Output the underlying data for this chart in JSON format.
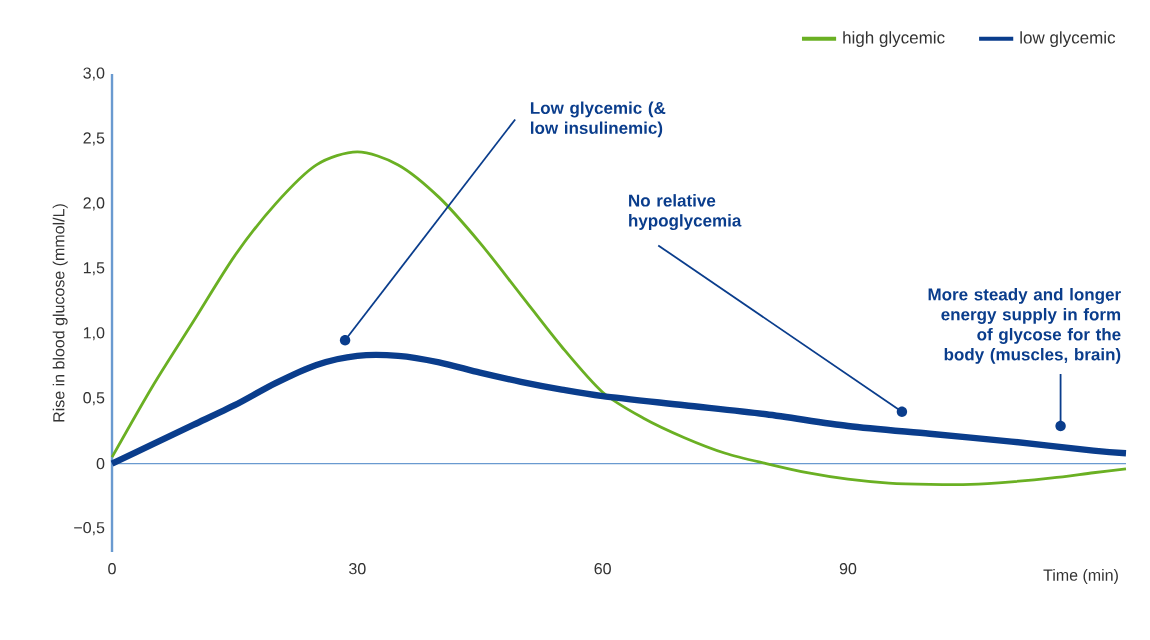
{
  "chart_data": {
    "type": "line",
    "xlabel": "Time (min)",
    "ylabel": "Rise in blood glucose (mmol/L)",
    "xlim": [
      0,
      124
    ],
    "ylim": [
      -0.68,
      3.0
    ],
    "xticks": [
      0,
      30,
      60,
      90
    ],
    "yticks": [
      {
        "value": -0.5,
        "label": "−0,5"
      },
      0,
      {
        "value": 0.5,
        "label": "0,5"
      },
      {
        "value": 1,
        "label": "1,0"
      },
      {
        "value": 1.5,
        "label": "1,5"
      },
      {
        "value": 2,
        "label": "2,0"
      },
      {
        "value": 2.5,
        "label": "2,5"
      },
      {
        "value": 3,
        "label": "3,0"
      }
    ],
    "ref_lines": [
      {
        "axis": "y",
        "value": 0,
        "color": "#6a9ad0"
      }
    ],
    "legend": "top right",
    "grid": false,
    "marker": "none",
    "line_style": "solid",
    "series": [
      {
        "name": "high glycemic",
        "color": "#6ab023",
        "x": [
          0,
          5,
          10,
          15,
          20,
          25,
          30,
          35,
          40,
          45,
          50,
          55,
          60,
          65,
          70,
          75,
          80,
          85,
          90,
          95,
          100,
          105,
          110,
          115,
          120,
          124
        ],
        "values": [
          0.05,
          0.6,
          1.1,
          1.6,
          2.0,
          2.3,
          2.4,
          2.3,
          2.05,
          1.7,
          1.3,
          0.9,
          0.55,
          0.35,
          0.2,
          0.08,
          0,
          -0.07,
          -0.12,
          -0.15,
          -0.16,
          -0.16,
          -0.14,
          -0.11,
          -0.07,
          -0.04
        ]
      },
      {
        "name": "low glycemic",
        "color": "#0a3d8c",
        "x": [
          0,
          5,
          10,
          15,
          20,
          25,
          30,
          35,
          40,
          45,
          50,
          55,
          60,
          70,
          80,
          90,
          100,
          110,
          120,
          124
        ],
        "values": [
          0,
          0.15,
          0.3,
          0.45,
          0.62,
          0.76,
          0.83,
          0.83,
          0.78,
          0.7,
          0.63,
          0.57,
          0.52,
          0.45,
          0.38,
          0.29,
          0.23,
          0.17,
          0.1,
          0.08
        ]
      }
    ],
    "annotations": [
      {
        "text": "Low glycemic (& low insulinemic)",
        "x": 28.5,
        "y": 0.95
      },
      {
        "text": "No relative hypoglycemia",
        "x": 96.6,
        "y": 0.4
      },
      {
        "text": "More steady and longer energy supply in form of glycose for the body (muscles, brain)",
        "x": 116,
        "y": 0.29
      }
    ]
  }
}
